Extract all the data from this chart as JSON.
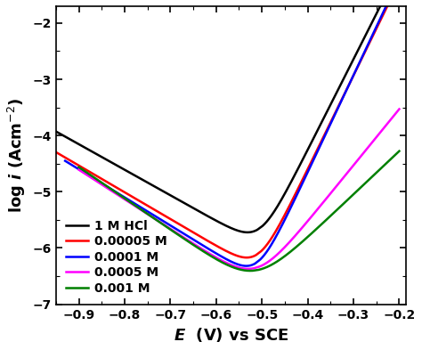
{
  "title": "",
  "xlabel": "E  (V) vs SCE",
  "xlim": [
    -0.95,
    -0.185
  ],
  "ylim": [
    -7,
    -1.7
  ],
  "yticks": [
    -7,
    -6,
    -5,
    -4,
    -3,
    -2
  ],
  "xticks": [
    -0.9,
    -0.8,
    -0.7,
    -0.6,
    -0.5,
    -0.4,
    -0.3,
    -0.2
  ],
  "curves": [
    {
      "label": "1 M HCl",
      "color": "black",
      "E_corr": -0.505,
      "log_i_corr": -5.95,
      "ba": 0.062,
      "bc": 0.22,
      "E_min": -0.95,
      "E_max": -0.2
    },
    {
      "label": "0.00005 M",
      "color": "red",
      "E_corr": -0.508,
      "log_i_corr": -6.4,
      "ba": 0.06,
      "bc": 0.21,
      "E_min": -0.95,
      "E_max": -0.2
    },
    {
      "label": "0.0001 M",
      "color": "blue",
      "E_corr": -0.51,
      "log_i_corr": -6.55,
      "ba": 0.058,
      "bc": 0.2,
      "E_min": -0.93,
      "E_max": -0.2
    },
    {
      "label": "0.0005 M",
      "color": "magenta",
      "E_corr": -0.512,
      "log_i_corr": -6.65,
      "ba": 0.1,
      "bc": 0.19,
      "E_min": -0.9,
      "E_max": -0.2
    },
    {
      "label": "0.001 M",
      "color": "green",
      "E_corr": -0.515,
      "log_i_corr": -6.7,
      "ba": 0.13,
      "bc": 0.18,
      "E_min": -0.9,
      "E_max": -0.2
    }
  ],
  "background_color": "white",
  "tick_fontsize": 10,
  "label_fontsize": 13,
  "legend_fontsize": 10,
  "linewidth": 1.8
}
